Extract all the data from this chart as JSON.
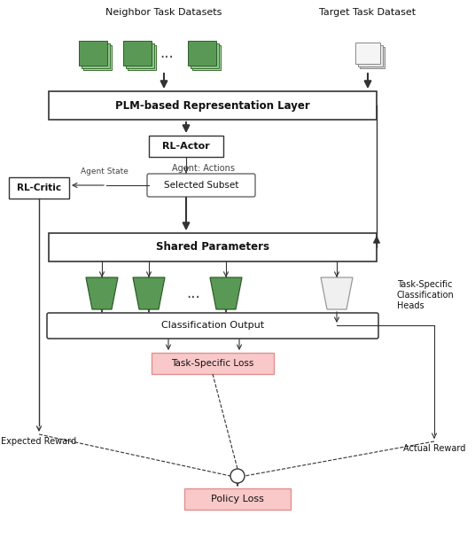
{
  "fig_width": 5.36,
  "fig_height": 6.16,
  "dpi": 100,
  "bg_color": "#ffffff",
  "green_fill": "#5a9955",
  "green_back1": "#8dc88a",
  "green_back2": "#b0d8ad",
  "pink_color": "#f9c8c8",
  "pink_edge": "#e09090",
  "box_edge": "#333333",
  "gray_fill": "#f0f0f0",
  "gray_edge": "#999999",
  "arrow_color": "#222222",
  "text_color": "#111111",
  "neighbor_label": "Neighbor Task Datasets",
  "target_label": "Target Task Dataset",
  "plm_label": "PLM-based Representation Layer",
  "rl_actor_label": "RL-Actor",
  "agent_actions_label": "Agent: Actions",
  "selected_subset_label": "Selected Subset",
  "agent_state_label": "Agent State",
  "rl_critic_label": "RL-Critic",
  "shared_label": "Shared Parameters",
  "task_heads_label": "Task-Specific\nClassification\nHeads",
  "co_label": "Classification Output",
  "tsl_label": "Task-Specific Loss",
  "expected_label": "Expected Reward",
  "actual_label": "Actual Reward",
  "policy_label": "Policy Loss"
}
